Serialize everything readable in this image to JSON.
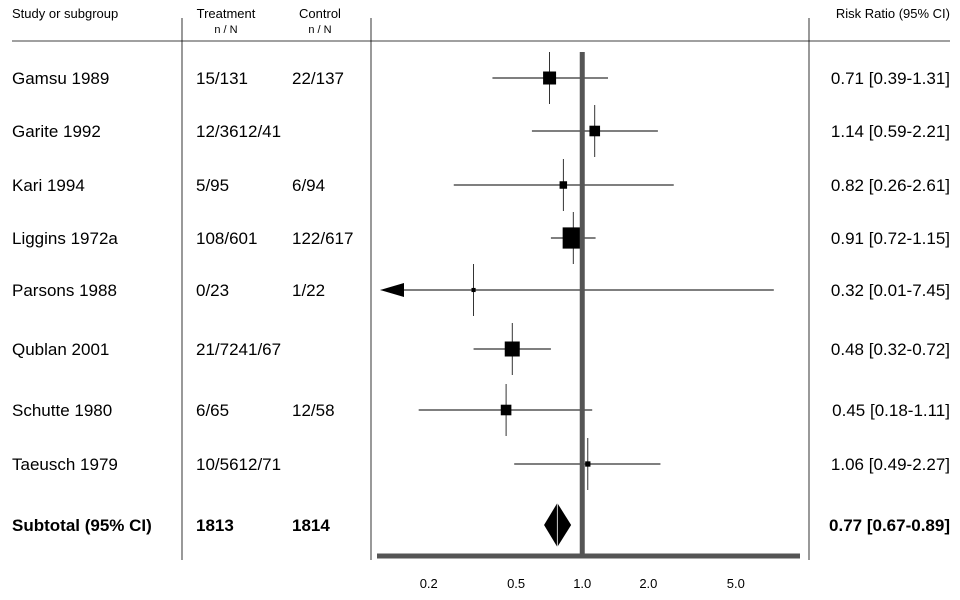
{
  "chart_data": {
    "type": "forest",
    "headers": {
      "study": "Study or subgroup",
      "treatment": "Treatment",
      "control": "Control",
      "n_over_n": "n / N",
      "risk_ratio": "Risk Ratio (95% CI)"
    },
    "studies": [
      {
        "name": "Gamsu 1989",
        "treatment": "15/131",
        "control": "22/137",
        "rr": 0.71,
        "lo": 0.39,
        "hi": 1.31,
        "ci_text": "0.71 [0.39-1.31]",
        "weight": 3.0
      },
      {
        "name": "Garite 1992",
        "treatment": "12/3612/41",
        "control": "",
        "rr": 1.14,
        "lo": 0.59,
        "hi": 2.21,
        "ci_text": "1.14 [0.59-2.21]",
        "weight": 2.0
      },
      {
        "name": "Kari 1994",
        "treatment": "5/95",
        "control": "6/94",
        "rr": 0.82,
        "lo": 0.26,
        "hi": 2.61,
        "ci_text": "0.82 [0.26-2.61]",
        "weight": 1.0
      },
      {
        "name": "Liggins 1972a",
        "treatment": "108/601",
        "control": "122/617",
        "rr": 0.91,
        "lo": 0.72,
        "hi": 1.15,
        "ci_text": "0.91 [0.72-1.15]",
        "weight": 8.0
      },
      {
        "name": "Parsons 1988",
        "treatment": "0/23",
        "control": "1/22",
        "rr": 0.32,
        "lo": 0.01,
        "hi": 7.45,
        "ci_text": "0.32 [0.01-7.45]",
        "weight": 0.3
      },
      {
        "name": "Qublan 2001",
        "treatment": "21/7241/67",
        "control": "",
        "rr": 0.48,
        "lo": 0.32,
        "hi": 0.72,
        "ci_text": "0.48 [0.32-0.72]",
        "weight": 4.0
      },
      {
        "name": "Schutte 1980",
        "treatment": "6/65",
        "control": "12/58",
        "rr": 0.45,
        "lo": 0.18,
        "hi": 1.11,
        "ci_text": "0.45 [0.18-1.11]",
        "weight": 2.0
      },
      {
        "name": "Taeusch 1979",
        "treatment": "10/5612/71",
        "control": "",
        "rr": 1.06,
        "lo": 0.49,
        "hi": 2.27,
        "ci_text": "1.06 [0.49-2.27]",
        "weight": 0.5
      }
    ],
    "subtotal": {
      "name": "Subtotal (95% CI)",
      "treatment": "1813",
      "control": "1814",
      "rr": 0.77,
      "lo": 0.67,
      "hi": 0.89,
      "ci_text": "0.77 [0.67-0.89]"
    },
    "x_ticks": [
      {
        "value": 0.2,
        "label": "0.2"
      },
      {
        "value": 0.5,
        "label": "0.5"
      },
      {
        "value": 1.0,
        "label": "1.0"
      },
      {
        "value": 2.0,
        "label": "2.0"
      },
      {
        "value": 5.0,
        "label": "5.0"
      }
    ],
    "x_scale": "log",
    "xlim": [
      0.12,
      9.5
    ],
    "reference_line": 1.0
  }
}
